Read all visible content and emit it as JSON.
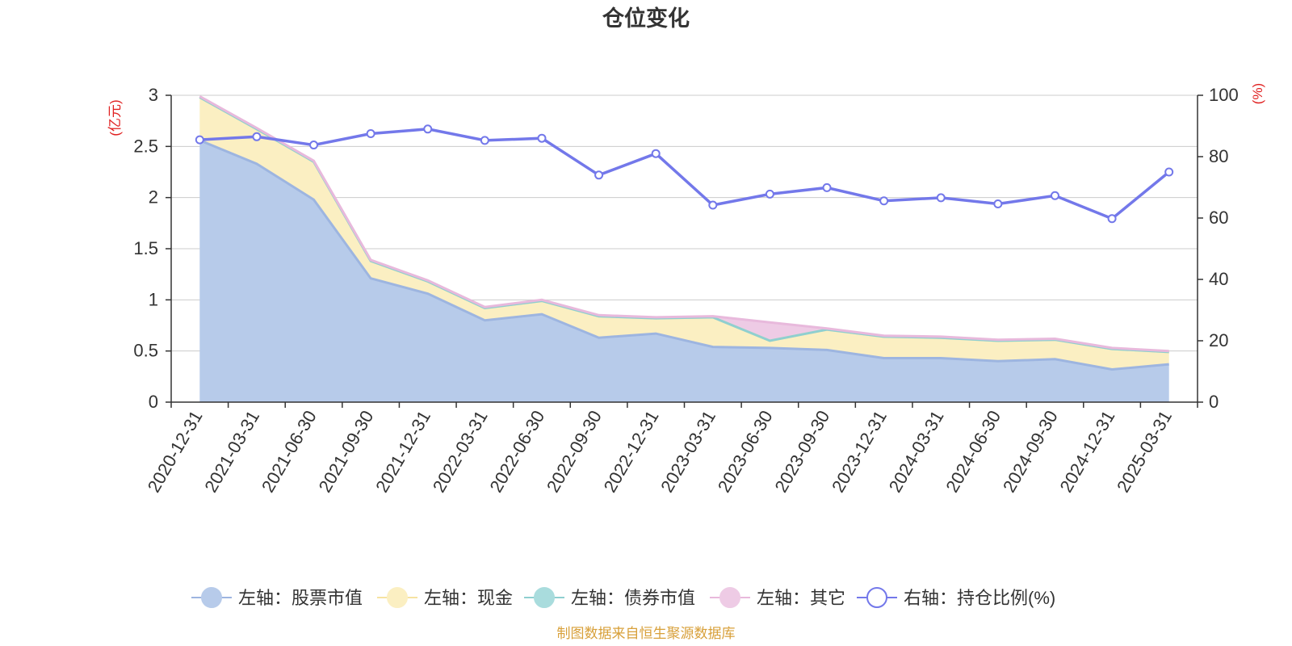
{
  "chart_data": {
    "type": "area",
    "title": "仓位变化",
    "left_axis_unit": "(亿元)",
    "right_axis_unit": "(%)",
    "categories": [
      "2020-12-31",
      "2021-03-31",
      "2021-06-30",
      "2021-09-30",
      "2021-12-31",
      "2022-03-31",
      "2022-06-30",
      "2022-09-30",
      "2022-12-31",
      "2023-03-31",
      "2023-06-30",
      "2023-09-30",
      "2023-12-31",
      "2024-03-31",
      "2024-06-30",
      "2024-09-30",
      "2024-12-31",
      "2025-03-31"
    ],
    "y_left": {
      "min": 0,
      "max": 3,
      "ticks": [
        0,
        0.5,
        1,
        1.5,
        2,
        2.5,
        3
      ],
      "tick_labels": [
        "0",
        "0.5",
        "1",
        "1.5",
        "2",
        "2.5",
        "3"
      ]
    },
    "y_right": {
      "min": 0,
      "max": 100,
      "ticks": [
        0,
        20,
        40,
        60,
        80,
        100
      ],
      "tick_labels": [
        "0",
        "20",
        "40",
        "60",
        "80",
        "100"
      ]
    },
    "grid": true,
    "legend_position": "bottom",
    "series": [
      {
        "name": "左轴：股票市值",
        "axis": "left",
        "kind": "stacked-area",
        "color": "#9db5e0",
        "fill": "#b7cbea",
        "values": [
          2.56,
          2.33,
          1.98,
          1.21,
          1.06,
          0.8,
          0.86,
          0.63,
          0.67,
          0.54,
          0.53,
          0.51,
          0.43,
          0.43,
          0.4,
          0.42,
          0.32,
          0.37
        ]
      },
      {
        "name": "左轴：现金",
        "axis": "left",
        "kind": "stacked-area",
        "color": "#f6e3a1",
        "fill": "#fbefc2",
        "values": [
          0.42,
          0.34,
          0.37,
          0.17,
          0.12,
          0.12,
          0.13,
          0.21,
          0.15,
          0.29,
          0.07,
          0.2,
          0.21,
          0.2,
          0.2,
          0.19,
          0.2,
          0.12
        ]
      },
      {
        "name": "左轴：债券市值",
        "axis": "left",
        "kind": "stacked-area",
        "color": "#8fcfd0",
        "fill": "#a9dcdd",
        "values": [
          0,
          0,
          0,
          0,
          0,
          0,
          0,
          0,
          0,
          0,
          0,
          0,
          0,
          0,
          0,
          0,
          0,
          0
        ]
      },
      {
        "name": "左轴：其它",
        "axis": "left",
        "kind": "stacked-area",
        "color": "#e8b9dc",
        "fill": "#eecbe5",
        "values": [
          0.01,
          0.01,
          0.01,
          0.01,
          0.01,
          0.01,
          0.01,
          0.01,
          0.01,
          0.01,
          0.18,
          0.01,
          0.01,
          0.01,
          0.01,
          0.01,
          0.01,
          0.01
        ]
      },
      {
        "name": "右轴：持仓比例(%)",
        "axis": "right",
        "kind": "line",
        "color": "#7378ea",
        "values": [
          85.5,
          86.5,
          83.8,
          87.5,
          89.0,
          85.3,
          86.0,
          74.0,
          81.0,
          64.2,
          67.8,
          69.9,
          65.6,
          66.6,
          64.6,
          67.3,
          59.8,
          75.0
        ]
      }
    ],
    "source_note": "制图数据来自恒生聚源数据库"
  }
}
